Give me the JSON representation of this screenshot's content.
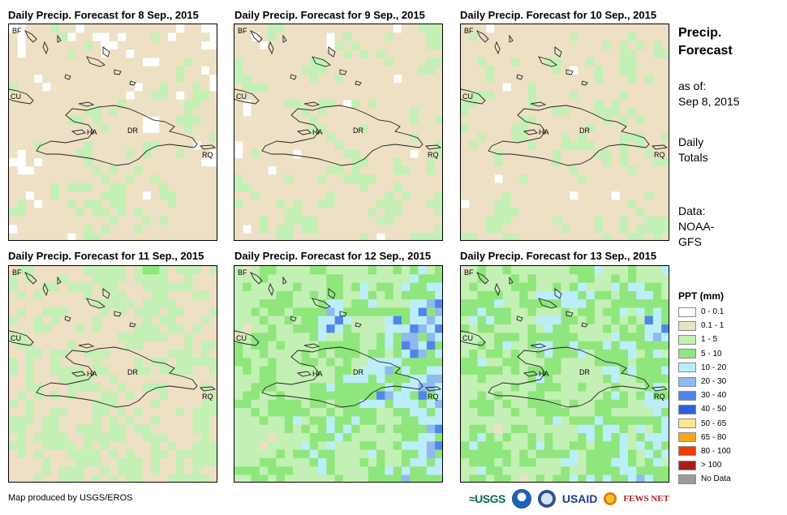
{
  "maps": [
    {
      "title": "Daily Precip. Forecast for 8 Sep., 2015",
      "seed": 11,
      "bias": [
        0.4,
        0.24,
        0.06,
        0.0,
        0.0
      ],
      "east": 0.0
    },
    {
      "title": "Daily Precip. Forecast for 9 Sep., 2015",
      "seed": 23,
      "bias": [
        0.4,
        0.26,
        0.06,
        0.02,
        0.0
      ],
      "east": 0.05
    },
    {
      "title": "Daily Precip. Forecast for 10 Sep., 2015",
      "seed": 37,
      "bias": [
        0.42,
        0.24,
        0.08,
        0.02,
        0.0
      ],
      "east": 0.03
    },
    {
      "title": "Daily Precip. Forecast for 11 Sep., 2015",
      "seed": 41,
      "bias": [
        0.36,
        0.3,
        0.1,
        0.04,
        0.01
      ],
      "east": 0.05
    },
    {
      "title": "Daily Precip. Forecast for 12 Sep., 2015",
      "seed": 53,
      "bias": [
        0.12,
        0.32,
        0.22,
        0.14,
        0.05
      ],
      "east": 0.35
    },
    {
      "title": "Daily Precip. Forecast for 13 Sep., 2015",
      "seed": 67,
      "bias": [
        0.1,
        0.3,
        0.22,
        0.18,
        0.07
      ],
      "east": 0.2
    }
  ],
  "map_labels": {
    "bf": "BF",
    "cu": "CU",
    "ha": "HA",
    "dr": "DR",
    "rq": "RQ"
  },
  "side": {
    "title_line1": "Precip.",
    "title_line2": "Forecast",
    "asof_label": "as of:",
    "asof_date": "Sep 8, 2015",
    "daily_line1": "Daily",
    "daily_line2": "Totals",
    "data_line1": "Data:",
    "data_line2": "NOAA-",
    "data_line3": "GFS"
  },
  "legend": {
    "title": "PPT (mm)",
    "items": [
      {
        "label": "0 - 0.1",
        "color": "#ffffff"
      },
      {
        "label": "0.1 - 1",
        "color": "#ede0c4"
      },
      {
        "label": "1 - 5",
        "color": "#c3f0b4"
      },
      {
        "label": "5 - 10",
        "color": "#8fe67c"
      },
      {
        "label": "10 - 20",
        "color": "#bceefa"
      },
      {
        "label": "20 - 30",
        "color": "#8ebaf0"
      },
      {
        "label": "30 - 40",
        "color": "#4f86ea"
      },
      {
        "label": "40 - 50",
        "color": "#2b5fe0"
      },
      {
        "label": "50 - 65",
        "color": "#fde68e"
      },
      {
        "label": "65 - 80",
        "color": "#f8a71b"
      },
      {
        "label": "80 - 100",
        "color": "#f23c05"
      },
      {
        "label": "> 100",
        "color": "#a81c1c"
      },
      {
        "label": "No Data",
        "color": "#9a9a9a"
      }
    ]
  },
  "credit": "Map produced by USGS/EROS",
  "logos": {
    "usgs": "≈USGS",
    "usaid": "USAID",
    "fews": "FEWS NET"
  }
}
